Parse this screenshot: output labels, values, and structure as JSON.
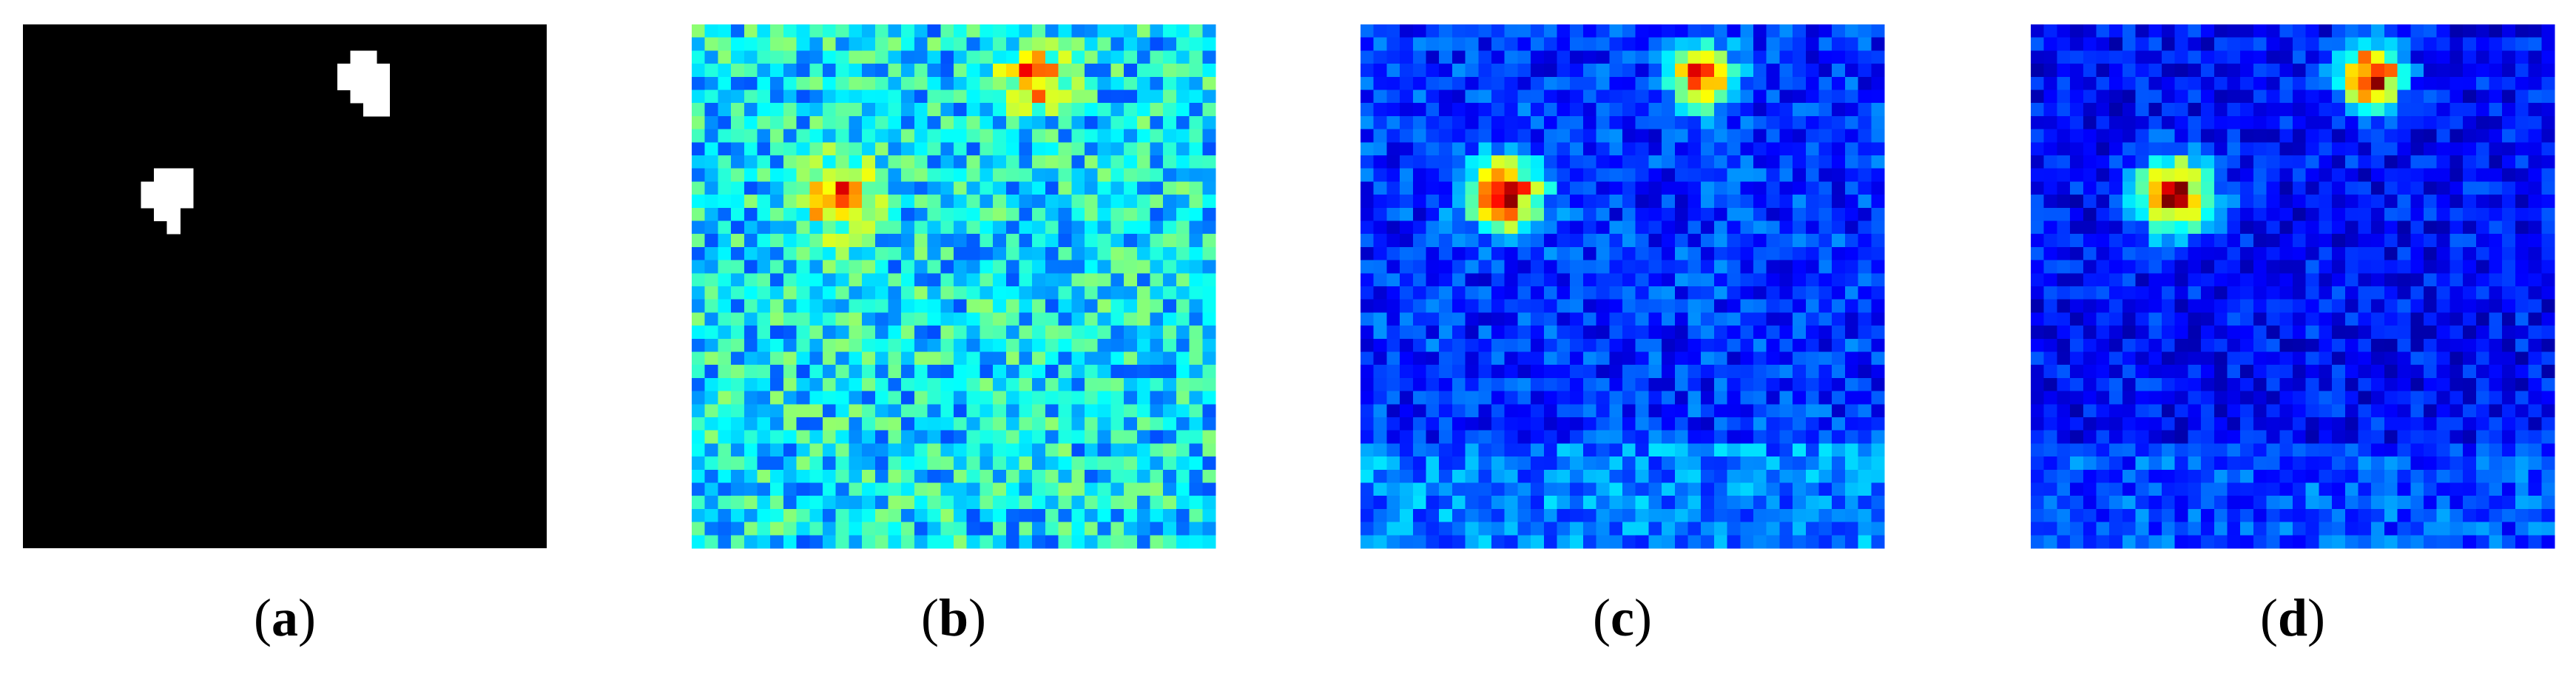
{
  "panels": [
    {
      "caption": [
        "(",
        "a",
        ")"
      ]
    },
    {
      "caption": [
        "(",
        "b",
        ")"
      ]
    },
    {
      "caption": [
        "(",
        "c",
        ")"
      ]
    },
    {
      "caption": [
        "(",
        "d",
        ")"
      ]
    }
  ]
}
